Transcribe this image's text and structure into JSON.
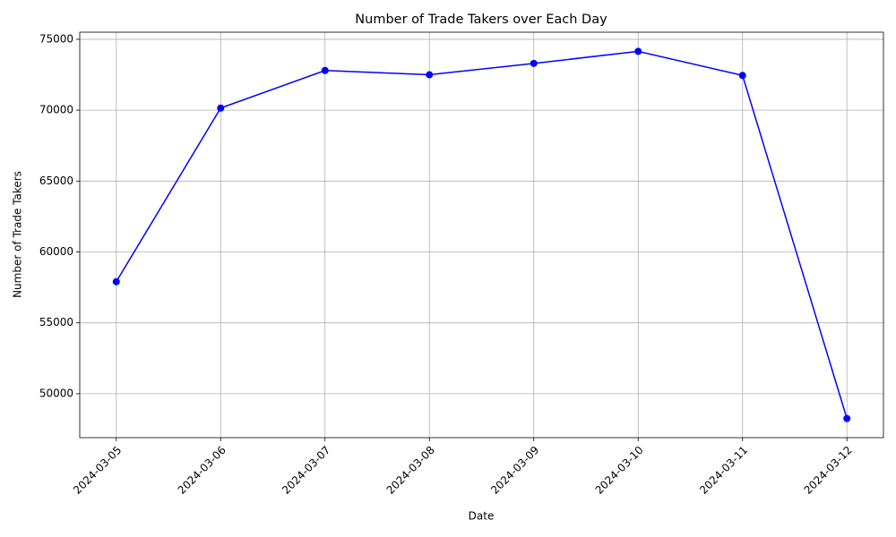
{
  "chart_data": {
    "type": "line",
    "title": "Number of Trade Takers over Each Day",
    "x_label": "Date",
    "y_label": "Number of Trade Takers",
    "categories": [
      "2024-03-05",
      "2024-03-06",
      "2024-03-07",
      "2024-03-08",
      "2024-03-09",
      "2024-03-10",
      "2024-03-11",
      "2024-03-12"
    ],
    "values": [
      57900,
      70150,
      72800,
      72500,
      73300,
      74150,
      72450,
      48250
    ],
    "color": "#0000ff",
    "marker": true,
    "ylim": [
      46900,
      75500
    ],
    "yticks": [
      50000,
      55000,
      60000,
      65000,
      70000,
      75000
    ],
    "grid": true
  }
}
